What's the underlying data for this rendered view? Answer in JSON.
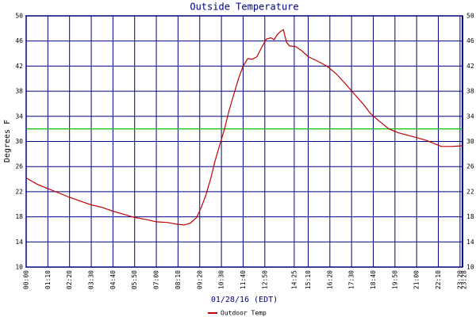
{
  "chart_data": {
    "type": "line",
    "title": "Outside Temperature",
    "y_label": "Degrees F",
    "x_label": "01/28/16 (EDT)",
    "x": [
      0,
      35,
      70,
      105,
      140,
      175,
      210,
      245,
      280,
      315,
      350,
      385,
      420,
      455,
      490,
      510,
      530,
      550,
      565,
      580,
      595,
      610,
      625,
      640,
      655,
      670,
      685,
      700,
      715,
      730,
      745,
      760,
      775,
      790,
      800,
      810,
      820,
      830,
      840,
      850,
      870,
      890,
      910,
      940,
      970,
      1000,
      1030,
      1060,
      1090,
      1110,
      1140,
      1170,
      1200,
      1230,
      1260,
      1290,
      1320,
      1340,
      1370,
      1408
    ],
    "series": [
      {
        "name": "Outdoor Temp",
        "color": "#c00000",
        "values": [
          24.2,
          23.2,
          22.5,
          21.8,
          21.1,
          20.5,
          19.9,
          19.5,
          18.9,
          18.4,
          17.9,
          17.6,
          17.2,
          17.1,
          16.8,
          16.7,
          17.0,
          17.9,
          19.5,
          21.5,
          24,
          27,
          29.5,
          32,
          35,
          37.5,
          40,
          42,
          43.2,
          43.1,
          43.5,
          45,
          46.3,
          46.5,
          46.2,
          47.0,
          47.5,
          47.8,
          45.8,
          45.2,
          45.1,
          44.4,
          43.5,
          42.8,
          42.0,
          40.8,
          39.2,
          37.5,
          35.8,
          34.5,
          33.2,
          32.0,
          31.4,
          31.0,
          30.6,
          30.2,
          29.6,
          29.2,
          29.2,
          29.3
        ]
      }
    ],
    "xlim": [
      0,
      1408
    ],
    "xticks": [
      {
        "value": 0,
        "label": "00:00"
      },
      {
        "value": 70,
        "label": "01:10"
      },
      {
        "value": 140,
        "label": "02:20"
      },
      {
        "value": 210,
        "label": "03:30"
      },
      {
        "value": 280,
        "label": "04:40"
      },
      {
        "value": 350,
        "label": "05:50"
      },
      {
        "value": 420,
        "label": "07:00"
      },
      {
        "value": 490,
        "label": "08:10"
      },
      {
        "value": 560,
        "label": "09:20"
      },
      {
        "value": 630,
        "label": "10:30"
      },
      {
        "value": 700,
        "label": "11:40"
      },
      {
        "value": 770,
        "label": "12:50"
      },
      {
        "value": 865,
        "label": "14:25"
      },
      {
        "value": 910,
        "label": "15:10"
      },
      {
        "value": 980,
        "label": "16:20"
      },
      {
        "value": 1050,
        "label": "17:30"
      },
      {
        "value": 1120,
        "label": "18:40"
      },
      {
        "value": 1190,
        "label": "19:50"
      },
      {
        "value": 1260,
        "label": "21:00"
      },
      {
        "value": 1330,
        "label": "22:10"
      },
      {
        "value": 1400,
        "label": "23:20"
      },
      {
        "value": 1408,
        "label": "23:28"
      }
    ],
    "ylim": [
      10,
      50
    ],
    "yticks": [
      10,
      14,
      18,
      22,
      26,
      30,
      34,
      38,
      42,
      46,
      50
    ],
    "reference_line": {
      "value": 32,
      "color": "#00c000"
    },
    "grid": true,
    "grid_color": "#000080",
    "legend": "bottom"
  }
}
